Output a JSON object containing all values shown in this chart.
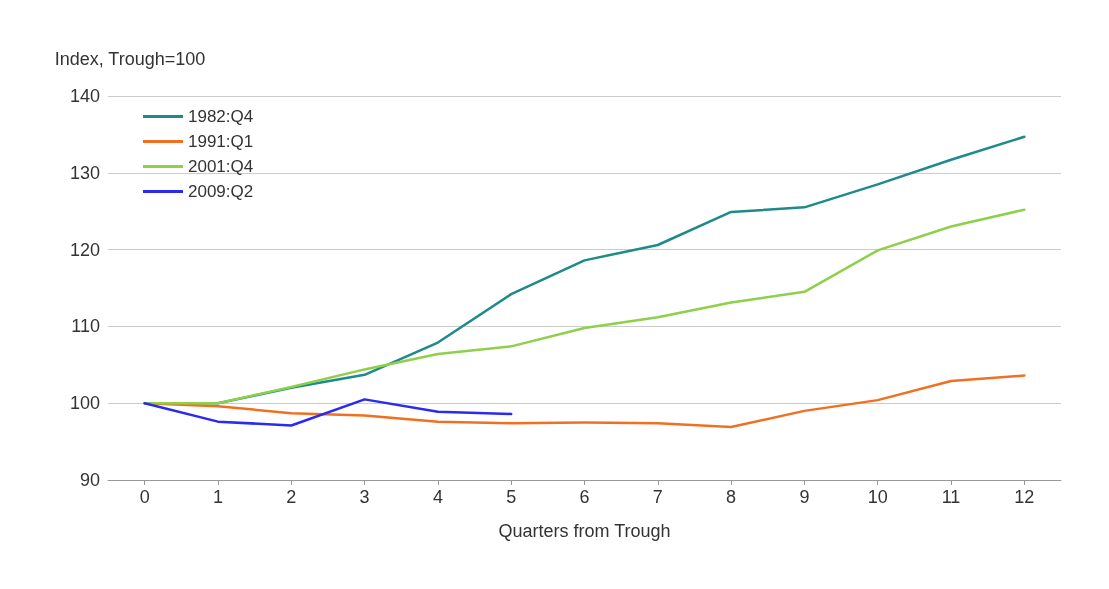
{
  "chart_data": {
    "type": "line",
    "ylabel": "Index, Trough=100",
    "xlabel": "Quarters from Trough",
    "x": [
      0,
      1,
      2,
      3,
      4,
      5,
      6,
      7,
      8,
      9,
      10,
      11,
      12
    ],
    "xlim": [
      -0.5,
      12.5
    ],
    "xticks": [
      0,
      1,
      2,
      3,
      4,
      5,
      6,
      7,
      8,
      9,
      10,
      11,
      12
    ],
    "series": [
      {
        "name": "1982:Q4",
        "color": "#1f8a8a",
        "values": [
          100,
          100,
          102,
          103.7,
          107.9,
          114.2,
          118.6,
          120.6,
          124.9,
          125.5,
          128.5,
          131.7,
          134.7
        ]
      },
      {
        "name": "1991:Q1",
        "color": "#f07020",
        "values": [
          100,
          99.6,
          98.7,
          98.4,
          97.6,
          97.4,
          97.5,
          97.4,
          96.9,
          99,
          100.4,
          102.9,
          103.6
        ]
      },
      {
        "name": "2001:Q4",
        "color": "#8ed04a",
        "values": [
          100,
          100,
          102.1,
          104.4,
          106.4,
          107.4,
          109.8,
          111.2,
          113.1,
          114.5,
          119.9,
          123,
          125.2
        ]
      },
      {
        "name": "2009:Q2",
        "color": "#2a2af0",
        "values": [
          100,
          97.6,
          97.1,
          100.5,
          98.9,
          98.6,
          null,
          null,
          null,
          null,
          null,
          null,
          null
        ]
      }
    ],
    "ylim": [
      90,
      140
    ],
    "yticks": [
      90,
      100,
      110,
      120,
      130,
      140
    ],
    "grid": "y",
    "legend": "top left",
    "marker": "none",
    "line_style": "solid"
  }
}
